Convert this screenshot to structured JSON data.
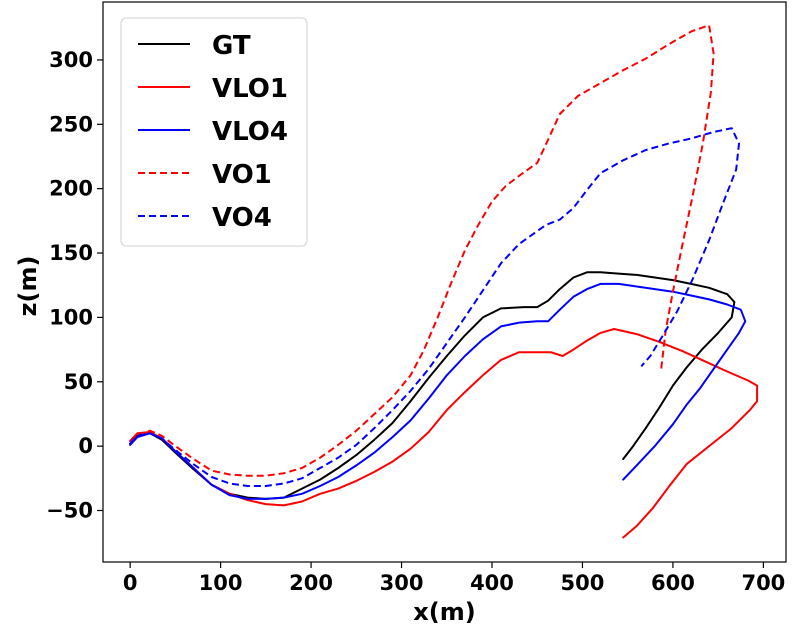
{
  "chart_data": {
    "type": "line",
    "title": "",
    "xlabel": "x(m)",
    "ylabel": "z(m)",
    "xlim": [
      -30,
      725
    ],
    "ylim": [
      -90,
      345
    ],
    "xticks": [
      0,
      100,
      200,
      300,
      400,
      500,
      600,
      700
    ],
    "yticks": [
      -50,
      0,
      50,
      100,
      150,
      200,
      250,
      300
    ],
    "xtick_labels": [
      "0",
      "100",
      "200",
      "300",
      "400",
      "500",
      "600",
      "700"
    ],
    "ytick_labels": [
      "−50",
      "0",
      "50",
      "100",
      "150",
      "200",
      "250",
      "300"
    ],
    "grid": false,
    "legend_position": "top-left",
    "series": [
      {
        "name": "GT",
        "color": "#000000",
        "dash": "solid",
        "x": [
          0,
          8,
          22,
          35,
          50,
          70,
          90,
          110,
          130,
          150,
          170,
          190,
          210,
          230,
          250,
          270,
          290,
          310,
          330,
          350,
          370,
          390,
          410,
          435,
          450,
          462,
          475,
          490,
          505,
          520,
          540,
          560,
          580,
          600,
          620,
          640,
          660,
          668,
          665,
          650,
          632,
          615,
          600,
          585,
          570,
          555,
          545
        ],
        "y": [
          2,
          8,
          10,
          5,
          -5,
          -18,
          -30,
          -37,
          -40,
          -41,
          -40,
          -33,
          -26,
          -17,
          -7,
          5,
          18,
          35,
          53,
          70,
          86,
          100,
          107,
          108,
          108,
          113,
          122,
          131,
          135,
          135,
          134,
          133,
          131,
          129,
          126,
          123,
          118,
          112,
          100,
          88,
          75,
          61,
          47,
          30,
          14,
          -1,
          -10
        ]
      },
      {
        "name": "VLO1",
        "color": "#ff0000",
        "dash": "solid",
        "x": [
          0,
          8,
          22,
          35,
          50,
          70,
          90,
          110,
          130,
          150,
          170,
          190,
          210,
          230,
          250,
          270,
          290,
          310,
          330,
          350,
          370,
          390,
          410,
          430,
          450,
          465,
          478,
          490,
          505,
          520,
          535,
          560,
          585,
          610,
          635,
          660,
          683,
          693,
          693,
          685,
          665,
          640,
          615,
          595,
          578,
          560,
          545
        ],
        "y": [
          4,
          10,
          11,
          6,
          -4,
          -17,
          -30,
          -37,
          -42,
          -45,
          -46,
          -43,
          -37,
          -33,
          -27,
          -20,
          -12,
          -2,
          11,
          28,
          42,
          55,
          67,
          73,
          73,
          73,
          70,
          75,
          82,
          88,
          91,
          87,
          81,
          74,
          66,
          58,
          51,
          47,
          35,
          28,
          14,
          0,
          -14,
          -32,
          -48,
          -62,
          -71
        ]
      },
      {
        "name": "VLO4",
        "color": "#0000ff",
        "dash": "solid",
        "x": [
          0,
          8,
          22,
          35,
          50,
          70,
          90,
          110,
          130,
          150,
          170,
          190,
          210,
          230,
          250,
          270,
          290,
          310,
          330,
          350,
          370,
          390,
          410,
          430,
          450,
          462,
          475,
          490,
          505,
          520,
          540,
          560,
          580,
          600,
          620,
          640,
          660,
          675,
          680,
          673,
          660,
          645,
          630,
          615,
          600,
          580,
          560,
          545
        ],
        "y": [
          1,
          7,
          10,
          6,
          -4,
          -17,
          -30,
          -38,
          -41,
          -41,
          -40,
          -37,
          -31,
          -24,
          -15,
          -5,
          7,
          20,
          37,
          55,
          70,
          83,
          93,
          96,
          97,
          97,
          106,
          116,
          122,
          126,
          126,
          124,
          122,
          120,
          117,
          114,
          110,
          106,
          97,
          88,
          75,
          60,
          45,
          32,
          17,
          0,
          -15,
          -26
        ]
      },
      {
        "name": "VO1",
        "color": "#ff0000",
        "dash": "dashed",
        "x": [
          0,
          8,
          22,
          35,
          50,
          70,
          90,
          110,
          130,
          150,
          170,
          190,
          210,
          230,
          250,
          270,
          290,
          310,
          325,
          340,
          355,
          370,
          385,
          400,
          415,
          430,
          450,
          460,
          475,
          495,
          520,
          545,
          570,
          595,
          620,
          640,
          645,
          642,
          633,
          622,
          610,
          600,
          592,
          587
        ],
        "y": [
          3,
          9,
          12,
          8,
          0,
          -10,
          -19,
          -22,
          -23,
          -23,
          -21,
          -17,
          -9,
          1,
          12,
          25,
          38,
          55,
          75,
          100,
          127,
          152,
          172,
          190,
          202,
          210,
          220,
          235,
          258,
          272,
          282,
          292,
          301,
          312,
          322,
          327,
          305,
          275,
          235,
          195,
          155,
          120,
          90,
          60
        ]
      },
      {
        "name": "VO4",
        "color": "#0000ff",
        "dash": "dashed",
        "x": [
          0,
          8,
          22,
          35,
          50,
          70,
          90,
          110,
          130,
          150,
          170,
          190,
          210,
          230,
          250,
          270,
          290,
          310,
          330,
          350,
          370,
          390,
          410,
          430,
          450,
          460,
          475,
          490,
          505,
          520,
          545,
          570,
          595,
          620,
          645,
          665,
          673,
          670,
          655,
          640,
          622,
          605,
          588,
          575,
          565
        ],
        "y": [
          2,
          8,
          10,
          6,
          -3,
          -14,
          -24,
          -29,
          -31,
          -31,
          -29,
          -25,
          -17,
          -9,
          1,
          14,
          28,
          43,
          60,
          80,
          100,
          121,
          142,
          157,
          167,
          172,
          176,
          185,
          199,
          212,
          222,
          230,
          235,
          239,
          244,
          247,
          235,
          215,
          188,
          160,
          130,
          105,
          85,
          70,
          62
        ]
      }
    ]
  }
}
